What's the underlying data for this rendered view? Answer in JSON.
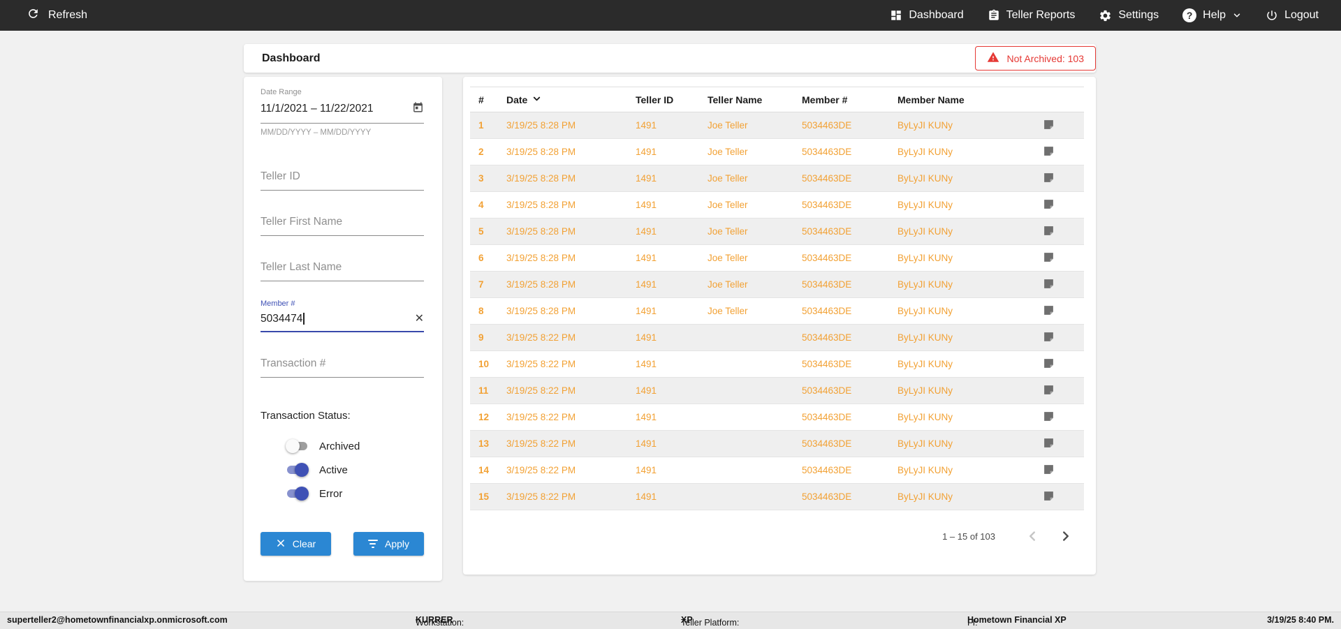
{
  "navbar": {
    "refresh_label": "Refresh",
    "items": [
      {
        "label": "Dashboard"
      },
      {
        "label": "Teller Reports"
      },
      {
        "label": "Settings"
      },
      {
        "label": "Help"
      },
      {
        "label": "Logout"
      }
    ]
  },
  "header": {
    "title": "Dashboard",
    "alert_label": "Not Archived: 103"
  },
  "filters": {
    "date_range": {
      "label": "Date Range",
      "value": "11/1/2021 – 11/22/2021",
      "hint": "MM/DD/YYYY – MM/DD/YYYY"
    },
    "teller_id": {
      "placeholder": "Teller ID"
    },
    "teller_first_name": {
      "placeholder": "Teller First Name"
    },
    "teller_last_name": {
      "placeholder": "Teller Last Name"
    },
    "member_number": {
      "label": "Member #",
      "value": "5034474"
    },
    "transaction_number": {
      "placeholder": "Transaction #"
    },
    "transaction_status": {
      "label": "Transaction Status:",
      "toggles": [
        {
          "label": "Archived",
          "on": false
        },
        {
          "label": "Active",
          "on": true
        },
        {
          "label": "Error",
          "on": true
        }
      ]
    },
    "clear_label": "Clear",
    "apply_label": "Apply"
  },
  "table": {
    "columns": [
      "#",
      "Date",
      "Teller ID",
      "Teller Name",
      "Member #",
      "Member Name"
    ],
    "sorted_column": "Date",
    "rows": [
      {
        "num": "1",
        "date": "3/19/25 8:28 PM",
        "teller_id": "1491",
        "teller_name": "Joe Teller",
        "member_number": "5034463DE",
        "member_name": "ByLyJI KUNy"
      },
      {
        "num": "2",
        "date": "3/19/25 8:28 PM",
        "teller_id": "1491",
        "teller_name": "Joe Teller",
        "member_number": "5034463DE",
        "member_name": "ByLyJI KUNy"
      },
      {
        "num": "3",
        "date": "3/19/25 8:28 PM",
        "teller_id": "1491",
        "teller_name": "Joe Teller",
        "member_number": "5034463DE",
        "member_name": "ByLyJI KUNy"
      },
      {
        "num": "4",
        "date": "3/19/25 8:28 PM",
        "teller_id": "1491",
        "teller_name": "Joe Teller",
        "member_number": "5034463DE",
        "member_name": "ByLyJI KUNy"
      },
      {
        "num": "5",
        "date": "3/19/25 8:28 PM",
        "teller_id": "1491",
        "teller_name": "Joe Teller",
        "member_number": "5034463DE",
        "member_name": "ByLyJI KUNy"
      },
      {
        "num": "6",
        "date": "3/19/25 8:28 PM",
        "teller_id": "1491",
        "teller_name": "Joe Teller",
        "member_number": "5034463DE",
        "member_name": "ByLyJI KUNy"
      },
      {
        "num": "7",
        "date": "3/19/25 8:28 PM",
        "teller_id": "1491",
        "teller_name": "Joe Teller",
        "member_number": "5034463DE",
        "member_name": "ByLyJI KUNy"
      },
      {
        "num": "8",
        "date": "3/19/25 8:28 PM",
        "teller_id": "1491",
        "teller_name": "Joe Teller",
        "member_number": "5034463DE",
        "member_name": "ByLyJI KUNy"
      },
      {
        "num": "9",
        "date": "3/19/25 8:22 PM",
        "teller_id": "1491",
        "teller_name": "",
        "member_number": "5034463DE",
        "member_name": "ByLyJI KUNy"
      },
      {
        "num": "10",
        "date": "3/19/25 8:22 PM",
        "teller_id": "1491",
        "teller_name": "",
        "member_number": "5034463DE",
        "member_name": "ByLyJI KUNy"
      },
      {
        "num": "11",
        "date": "3/19/25 8:22 PM",
        "teller_id": "1491",
        "teller_name": "",
        "member_number": "5034463DE",
        "member_name": "ByLyJI KUNy"
      },
      {
        "num": "12",
        "date": "3/19/25 8:22 PM",
        "teller_id": "1491",
        "teller_name": "",
        "member_number": "5034463DE",
        "member_name": "ByLyJI KUNy"
      },
      {
        "num": "13",
        "date": "3/19/25 8:22 PM",
        "teller_id": "1491",
        "teller_name": "",
        "member_number": "5034463DE",
        "member_name": "ByLyJI KUNy"
      },
      {
        "num": "14",
        "date": "3/19/25 8:22 PM",
        "teller_id": "1491",
        "teller_name": "",
        "member_number": "5034463DE",
        "member_name": "ByLyJI KUNy"
      },
      {
        "num": "15",
        "date": "3/19/25 8:22 PM",
        "teller_id": "1491",
        "teller_name": "",
        "member_number": "5034463DE",
        "member_name": "ByLyJI KUNy"
      }
    ],
    "pagination": {
      "range_label": "1 – 15 of 103"
    }
  },
  "footer": {
    "user": "superteller2@hometownfinancialxp.onmicrosoft.com",
    "workstation_label": "Workstation: ",
    "workstation_value": "KURRER",
    "platform_label": "Teller Platform: ",
    "platform_value": "XP",
    "fi_label": "FI: ",
    "fi_value": "Hometown Financial XP",
    "datetime": "3/19/25 8:40 PM."
  },
  "colors": {
    "navbar_bg": "#2b2b2b",
    "accent_blue": "#2b87d3",
    "accent_indigo": "#3f51b5",
    "row_text_orange": "#f2a134",
    "alert_red": "#e53935"
  }
}
